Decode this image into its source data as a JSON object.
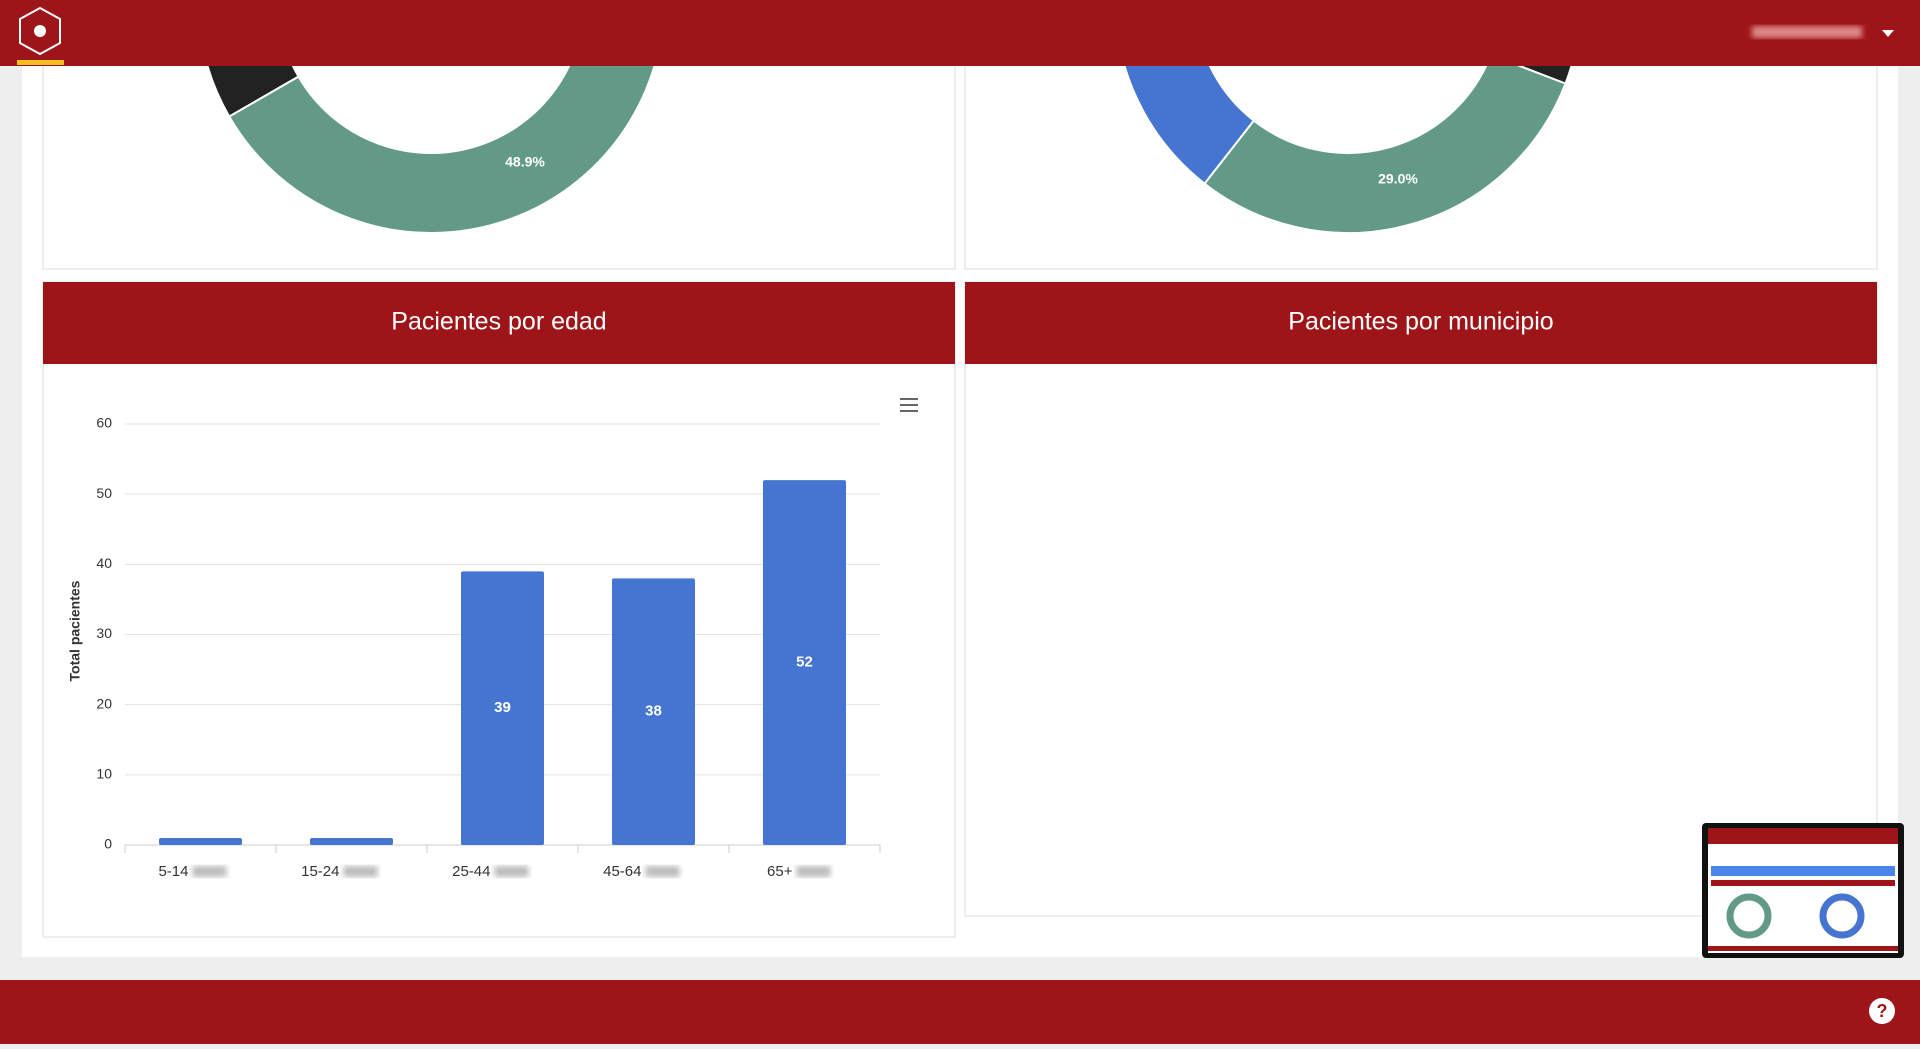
{
  "donut_labels": [
    "48.9%",
    "29.0%"
  ],
  "panels": {
    "age_title": "Pacientes por edad",
    "municipio_title": "Pacientes por municipio"
  },
  "chart_data": {
    "type": "bar",
    "ylabel": "Total pacientes",
    "categories": [
      "5-14",
      "15-24",
      "25-44",
      "45-64",
      "65+"
    ],
    "values": [
      1,
      1,
      39,
      38,
      52
    ],
    "color": "#4575d0",
    "ylim": [
      0,
      60
    ],
    "yticks": [
      0,
      10,
      20,
      30,
      40,
      50,
      60
    ],
    "grid": true,
    "data_labels": true
  }
}
